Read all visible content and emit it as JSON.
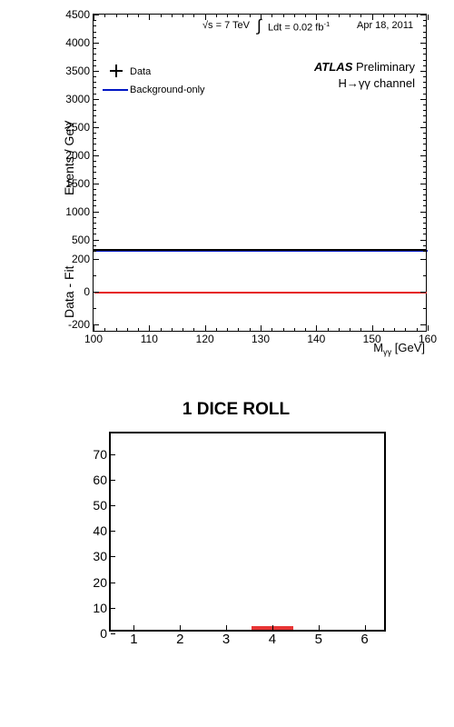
{
  "chart1": {
    "upper": {
      "ylabel": "Events / GeV",
      "ylim": [
        300,
        4500
      ],
      "yticks": [
        500,
        1000,
        1500,
        2000,
        2500,
        3000,
        3500,
        4000,
        4500
      ],
      "y_minor_step": 100,
      "fit_line_color": "#0016c4",
      "fit_line_y": 300,
      "annotations": {
        "energy": "√s = 7 TeV",
        "lumi_int": "∫",
        "lumi": "Ldt = 0.02 fb",
        "lumi_exp": "-1",
        "date": "Apr 18, 2011",
        "atlas": "ATLAS",
        "prelim": " Preliminary",
        "channel": "H→γγ channel"
      },
      "legend": {
        "data_label": "Data",
        "bkg_label": "Background-only"
      }
    },
    "lower": {
      "ylabel": "Data - Fit",
      "ylim": [
        -250,
        250
      ],
      "yticks": [
        -200,
        0,
        200
      ],
      "y_minor_step": 100,
      "red_line_color": "#e61e1e",
      "red_line_y": 0
    },
    "xlabel_main": "M",
    "xlabel_sub": "γγ",
    "xlabel_unit": " [GeV]",
    "xlim": [
      100,
      160
    ],
    "xticks": [
      100,
      110,
      120,
      130,
      140,
      150,
      160
    ],
    "x_minor_step": 2
  },
  "chart2": {
    "title": "1 DICE ROLL",
    "xlim": [
      0.5,
      6.5
    ],
    "ylim": [
      0,
      78
    ],
    "xticks": [
      1,
      2,
      3,
      4,
      5,
      6
    ],
    "yticks": [
      0,
      10,
      20,
      30,
      40,
      50,
      60,
      70
    ],
    "bump_x": 4,
    "bump_width": 0.9,
    "bump_height": 1.5,
    "bump_color": "#e61e1e",
    "border_color": "#000000"
  }
}
